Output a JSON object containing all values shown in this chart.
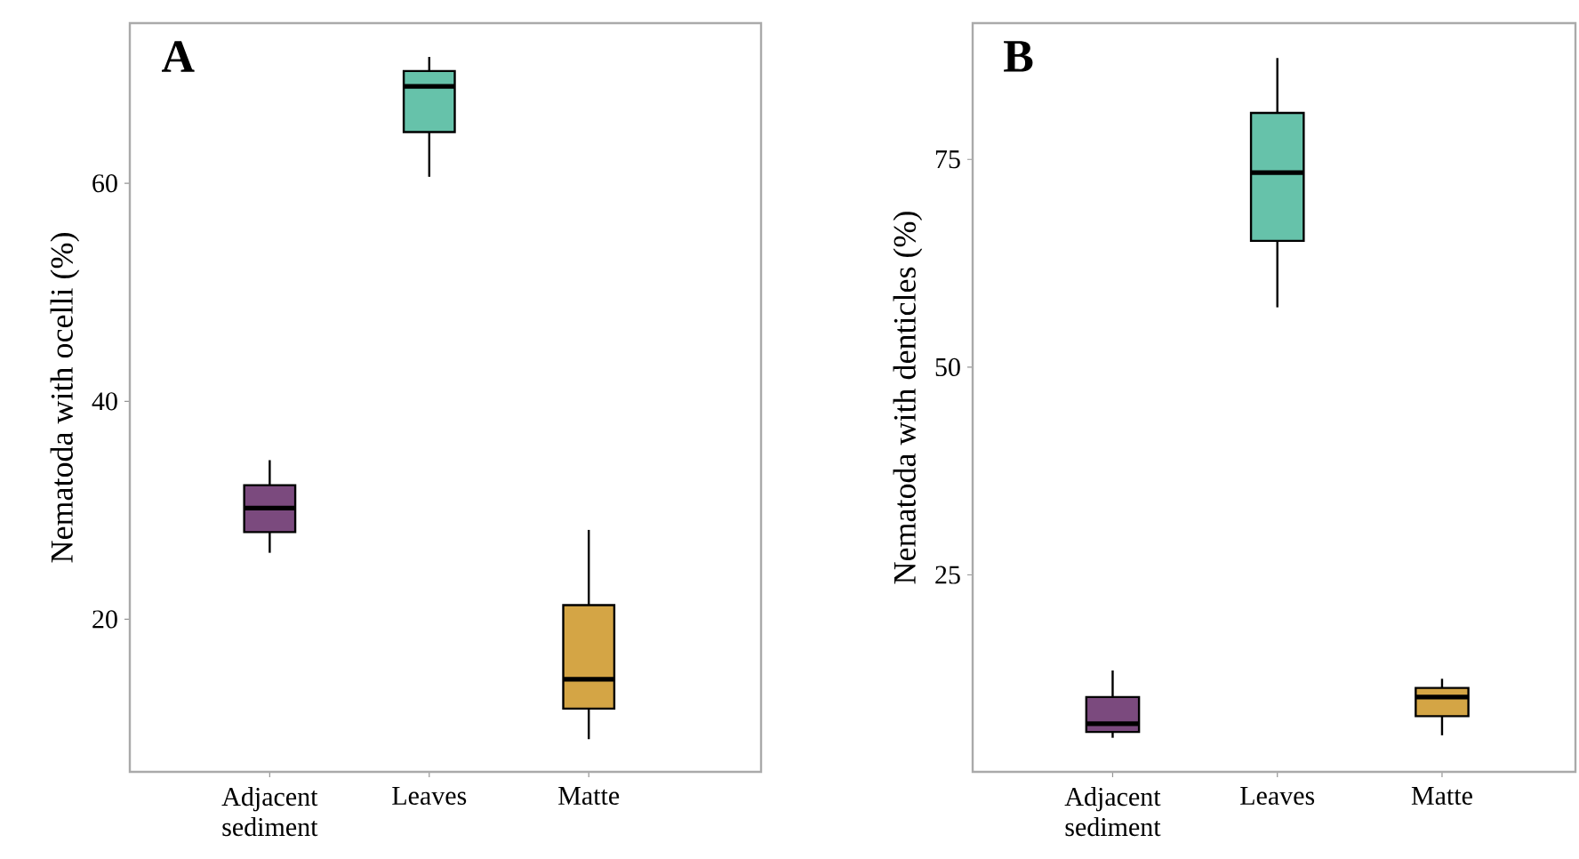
{
  "chart_data": [
    {
      "type": "box",
      "title": "A",
      "ylabel": "Nematoda with ocelli (%)",
      "categories": [
        "Adjacent sediment",
        "Leaves",
        "Matte"
      ],
      "colors": [
        "#7b4a7e",
        "#66c2aa",
        "#d4a545"
      ],
      "ylim": [
        6,
        74.7
      ],
      "yticks": [
        20,
        40,
        60
      ],
      "boxes": [
        {
          "low": 26.1,
          "q1": 28.0,
          "median": 30.2,
          "q3": 32.3,
          "high": 34.6
        },
        {
          "low": 60.6,
          "q1": 64.7,
          "median": 68.9,
          "q3": 70.3,
          "high": 71.6
        },
        {
          "low": 9.0,
          "q1": 11.8,
          "median": 14.5,
          "q3": 21.3,
          "high": 28.2
        }
      ]
    },
    {
      "type": "box",
      "title": "B",
      "ylabel": "Nematoda with denticles (%)",
      "categories": [
        "Adjacent sediment",
        "Leaves",
        "Matte"
      ],
      "colors": [
        "#7b4a7e",
        "#66c2aa",
        "#d4a545"
      ],
      "ylim": [
        1.3,
        91.4
      ],
      "yticks": [
        25,
        50,
        75
      ],
      "boxes": [
        {
          "low": 5.4,
          "q1": 6.1,
          "median": 7.1,
          "q3": 10.3,
          "high": 13.5
        },
        {
          "low": 57.2,
          "q1": 65.2,
          "median": 73.4,
          "q3": 80.6,
          "high": 87.2
        },
        {
          "low": 5.7,
          "q1": 8.0,
          "median": 10.3,
          "q3": 11.4,
          "high": 12.5
        }
      ]
    }
  ]
}
